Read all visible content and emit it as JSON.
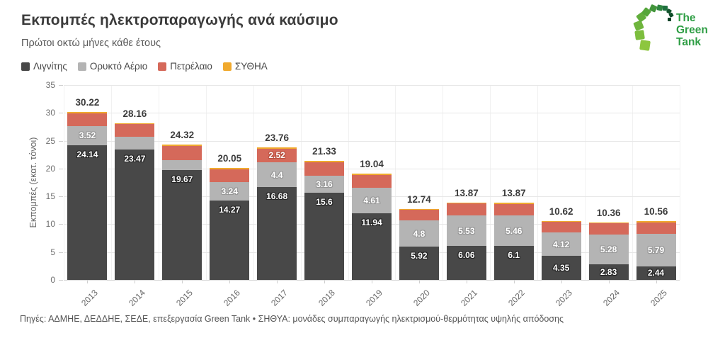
{
  "logo": {
    "line1": "The",
    "line2": "Green",
    "line3": "Tank"
  },
  "footer": {
    "text": "Πηγές: ΑΔΜΗΕ, ΔΕΔΔΗΕ, ΣΕΔΕ, επεξεργασία Green Tank • ΣΗΘΥΑ: μονάδες συμπαραγωγής ηλεκτρισμού-θερμότητας υψηλής απόδοσης"
  },
  "chart_data": {
    "type": "bar",
    "stacked": true,
    "title": "Εκπομπές ηλεκτροπαραγωγής ανά καύσιμο",
    "subtitle": "Πρώτοι οκτώ μήνες κάθε έτους",
    "ylabel": "Εκπομπές (εκατ. τόνοι)",
    "ylim": [
      0,
      35
    ],
    "yticks": [
      0,
      5,
      10,
      15,
      20,
      25,
      30,
      35
    ],
    "grid": "horizontal",
    "legend_position": "top-left",
    "categories": [
      "2013",
      "2014",
      "2015",
      "2016",
      "2017",
      "2018",
      "2019",
      "2020",
      "2021",
      "2022",
      "2023",
      "2024",
      "2025"
    ],
    "series": [
      {
        "name": "Λιγνίτης",
        "color": "#484848",
        "values": [
          24.14,
          23.47,
          19.67,
          14.27,
          16.68,
          15.6,
          11.94,
          5.92,
          6.06,
          6.1,
          4.35,
          2.83,
          2.44
        ],
        "labels": [
          "24.14",
          "23.47",
          "19.67",
          "14.27",
          "16.68",
          "15.6",
          "11.94",
          "5.92",
          "6.06",
          "6.1",
          "4.35",
          "2.83",
          "2.44"
        ]
      },
      {
        "name": "Ορυκτό Αέριο",
        "color": "#b4b4b4",
        "values": [
          3.52,
          2.2,
          1.9,
          3.24,
          4.4,
          3.16,
          4.61,
          4.8,
          5.53,
          5.46,
          4.12,
          5.28,
          5.79
        ],
        "labels": [
          "3.52",
          null,
          null,
          "3.24",
          "4.4",
          "3.16",
          "4.61",
          "4.8",
          "5.53",
          "5.46",
          "4.12",
          "5.28",
          "5.79"
        ],
        "unlabeled_values_estimated": true
      },
      {
        "name": "Πετρέλαιο",
        "color": "#d5695a",
        "values": [
          2.3,
          2.3,
          2.5,
          2.3,
          2.52,
          2.35,
          2.3,
          1.85,
          2.1,
          2.1,
          1.95,
          2.05,
          2.1
        ],
        "labels": [
          null,
          null,
          null,
          null,
          "2.52",
          null,
          null,
          null,
          null,
          null,
          null,
          null,
          null
        ],
        "unlabeled_values_estimated": true
      },
      {
        "name": "ΣΥΘΗΑ",
        "color": "#f0a92d",
        "values": [
          0.26,
          0.19,
          0.25,
          0.24,
          0.16,
          0.22,
          0.19,
          0.17,
          0.18,
          0.21,
          0.2,
          0.2,
          0.23
        ],
        "labels": [
          null,
          null,
          null,
          null,
          null,
          null,
          null,
          null,
          null,
          null,
          null,
          null,
          null
        ],
        "unlabeled_values_estimated": true
      }
    ],
    "totals": [
      30.22,
      28.16,
      24.32,
      20.05,
      23.76,
      21.33,
      19.04,
      12.74,
      13.87,
      13.87,
      10.62,
      10.36,
      10.56
    ],
    "total_labels": [
      "30.22",
      "28.16",
      "24.32",
      "20.05",
      "23.76",
      "21.33",
      "19.04",
      "12.74",
      "13.87",
      "13.87",
      "10.62",
      "10.36",
      "10.56"
    ]
  }
}
